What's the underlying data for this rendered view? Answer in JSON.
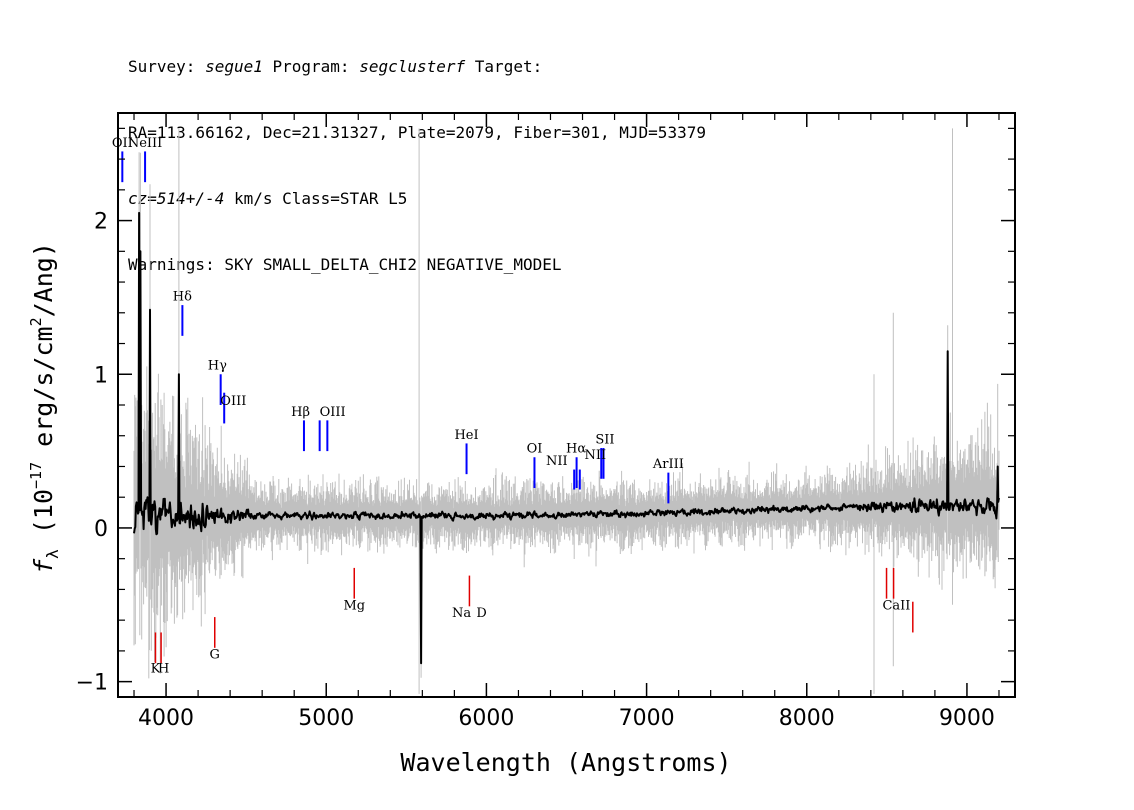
{
  "header": {
    "line1": {
      "prefix": "Survey: ",
      "survey": "segue1",
      "mid": " Program: ",
      "program": "segclusterf",
      "suffix": " Target:"
    },
    "line2": "RA=113.66162, Dec=21.31327, Plate=2079, Fiber=301, MJD=53379",
    "line3": {
      "redshift": "cz=514+/-4",
      "suffix": " km/s Class=STAR L5"
    },
    "line4": "Warnings: SKY SMALL_DELTA_CHI2 NEGATIVE_MODEL"
  },
  "chart_data": {
    "type": "line",
    "xlabel": "Wavelength (Angstroms)",
    "ylabel": "f_λ (10^-17 erg/s/cm^2/Ang)",
    "xlim": [
      3700,
      9300
    ],
    "ylim": [
      -1.1,
      2.7
    ],
    "x_ticks": [
      4000,
      5000,
      6000,
      7000,
      8000,
      9000
    ],
    "y_ticks": [
      -1,
      0,
      1,
      2
    ],
    "x_tick_labels": [
      "4000",
      "5000",
      "6000",
      "7000",
      "8000",
      "9000"
    ],
    "y_tick_labels": [
      "−1",
      "0",
      "1",
      "2"
    ],
    "grid": false,
    "colors": {
      "flux": "#000000",
      "error": "#c0c0c0",
      "emission": "#0000ff",
      "absorption": "#e00000"
    },
    "flux_spikes": [
      {
        "x": 3830,
        "y": 2.05
      },
      {
        "x": 3840,
        "y": 1.8
      },
      {
        "x": 3900,
        "y": 1.42
      },
      {
        "x": 4080,
        "y": 1.0
      },
      {
        "x": 5590,
        "y": -0.88
      },
      {
        "x": 8880,
        "y": 1.15
      },
      {
        "x": 9190,
        "y": 0.4
      }
    ],
    "emission_lines": [
      {
        "label": "OII",
        "x": 3727,
        "y_top": 2.45,
        "y_bottom": 2.25
      },
      {
        "label": "NeIII",
        "x": 3869,
        "y_top": 2.45,
        "y_bottom": 2.25
      },
      {
        "label": "Hδ",
        "x": 4102,
        "y_top": 1.45,
        "y_bottom": 1.25
      },
      {
        "label": "Hγ",
        "x": 4341,
        "y_top": 1.0,
        "y_bottom": 0.8
      },
      {
        "label": "OIII",
        "x": 4363,
        "y_top": 0.88,
        "y_bottom": 0.68
      },
      {
        "label": "Hβ",
        "x": 4861,
        "y_top": 0.7,
        "y_bottom": 0.5
      },
      {
        "label": "OIII",
        "x": 4959,
        "y_top": 0.7,
        "y_bottom": 0.5
      },
      {
        "label": "OIII",
        "x": 5007,
        "y_top": 0.7,
        "y_bottom": 0.5
      },
      {
        "label": "HeI",
        "x": 5876,
        "y_top": 0.55,
        "y_bottom": 0.35
      },
      {
        "label": "OI",
        "x": 6300,
        "y_top": 0.46,
        "y_bottom": 0.26
      },
      {
        "label": "NII",
        "x": 6548,
        "y_top": 0.38,
        "y_bottom": 0.25
      },
      {
        "label": "Hα",
        "x": 6563,
        "y_top": 0.46,
        "y_bottom": 0.26
      },
      {
        "label": "NII",
        "x": 6583,
        "y_top": 0.38,
        "y_bottom": 0.25
      },
      {
        "label": "SII",
        "x": 6717,
        "y_top": 0.52,
        "y_bottom": 0.32
      },
      {
        "label": "SII",
        "x": 6731,
        "y_top": 0.52,
        "y_bottom": 0.32
      },
      {
        "label": "ArIII",
        "x": 7136,
        "y_top": 0.36,
        "y_bottom": 0.16
      }
    ],
    "emission_labels": [
      {
        "text": "OII",
        "x": 3727,
        "y": 2.48
      },
      {
        "text": "NeIII",
        "x": 3869,
        "y": 2.48
      },
      {
        "text": "Hδ",
        "x": 4102,
        "y": 1.48
      },
      {
        "text": "Hγ",
        "x": 4320,
        "y": 1.03
      },
      {
        "text": "OIII",
        "x": 4420,
        "y": 0.8
      },
      {
        "text": "Hβ",
        "x": 4840,
        "y": 0.73
      },
      {
        "text": "OIII",
        "x": 5040,
        "y": 0.73
      },
      {
        "text": "HeI",
        "x": 5876,
        "y": 0.58
      },
      {
        "text": "OI",
        "x": 6300,
        "y": 0.49
      },
      {
        "text": "NII",
        "x": 6440,
        "y": 0.41
      },
      {
        "text": "Hα",
        "x": 6560,
        "y": 0.49
      },
      {
        "text": "NII",
        "x": 6680,
        "y": 0.45
      },
      {
        "text": "SII",
        "x": 6740,
        "y": 0.55
      },
      {
        "text": "ArIII",
        "x": 7136,
        "y": 0.39
      }
    ],
    "absorption_lines": [
      {
        "label": "K",
        "x": 3934,
        "y_top": -0.68,
        "y_bottom": -0.88
      },
      {
        "label": "H",
        "x": 3969,
        "y_top": -0.68,
        "y_bottom": -0.88
      },
      {
        "label": "G",
        "x": 4304,
        "y_top": -0.58,
        "y_bottom": -0.78
      },
      {
        "label": "Mg",
        "x": 5175,
        "y_top": -0.26,
        "y_bottom": -0.46
      },
      {
        "label": "Na",
        "x": 5894,
        "y_top": -0.31,
        "y_bottom": -0.51
      },
      {
        "label": "CaII",
        "x": 8498,
        "y_top": -0.26,
        "y_bottom": -0.46
      },
      {
        "label": "CaII",
        "x": 8542,
        "y_top": -0.26,
        "y_bottom": -0.46
      },
      {
        "label": "CaII",
        "x": 8662,
        "y_top": -0.48,
        "y_bottom": -0.68
      }
    ],
    "absorption_labels": [
      {
        "text": "K",
        "x": 3934,
        "y": -0.94
      },
      {
        "text": "H",
        "x": 3985,
        "y": -0.94
      },
      {
        "text": "G",
        "x": 4304,
        "y": -0.85
      },
      {
        "text": "Mg",
        "x": 5175,
        "y": -0.53
      },
      {
        "text": "Na",
        "x": 5845,
        "y": -0.58
      },
      {
        "text": "D",
        "x": 5970,
        "y": -0.58
      },
      {
        "text": "CaII",
        "x": 8560,
        "y": -0.53
      }
    ]
  }
}
